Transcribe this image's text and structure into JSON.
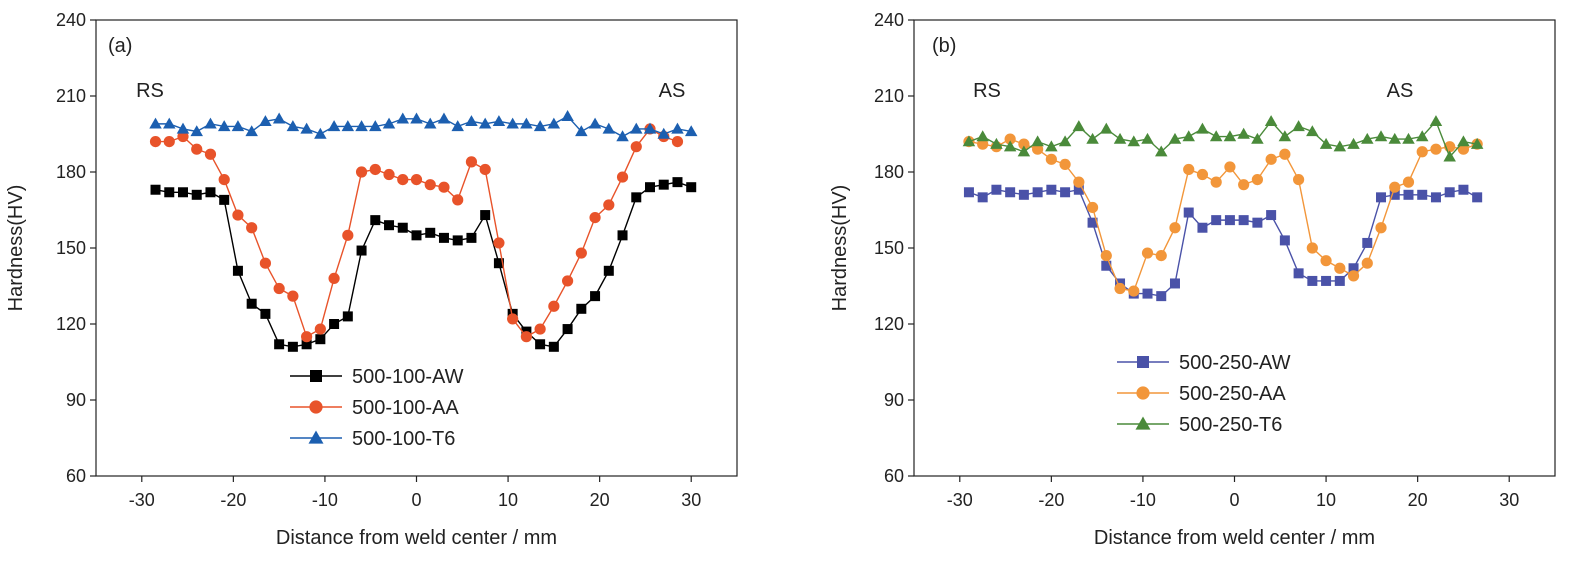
{
  "chart_data": [
    {
      "type": "line",
      "panel_label": "(a)",
      "xlabel": "Distance from weld center / mm",
      "ylabel": "Hardness(HV)",
      "xlim": [
        -35,
        35
      ],
      "ylim": [
        60,
        240
      ],
      "xticks": [
        -30,
        -20,
        -10,
        0,
        10,
        20,
        30
      ],
      "yticks": [
        60,
        90,
        120,
        150,
        180,
        210,
        240
      ],
      "annotations": [
        "RS",
        "AS"
      ],
      "legend_position": "bottom-center",
      "series": [
        {
          "name": "500-100-AW",
          "color": "#000000",
          "marker": "square",
          "x": [
            -28.5,
            -27,
            -25.5,
            -24,
            -22.5,
            -21,
            -19.5,
            -18,
            -16.5,
            -15,
            -13.5,
            -12,
            -10.5,
            -9,
            -7.5,
            -6,
            -4.5,
            -3,
            -1.5,
            0,
            1.5,
            3,
            4.5,
            6,
            7.5,
            9,
            10.5,
            12,
            13.5,
            15,
            16.5,
            18,
            19.5,
            21,
            22.5,
            24,
            25.5,
            27,
            28.5,
            30
          ],
          "y": [
            173,
            172,
            172,
            171,
            172,
            169,
            141,
            128,
            124,
            112,
            111,
            112,
            114,
            120,
            123,
            149,
            161,
            159,
            158,
            155,
            156,
            154,
            153,
            154,
            163,
            144,
            124,
            117,
            112,
            111,
            118,
            126,
            131,
            141,
            155,
            170,
            174,
            175,
            176,
            174
          ]
        },
        {
          "name": "500-100-AA",
          "color": "#e8532a",
          "marker": "circle",
          "x": [
            -28.5,
            -27,
            -25.5,
            -24,
            -22.5,
            -21,
            -19.5,
            -18,
            -16.5,
            -15,
            -13.5,
            -12,
            -10.5,
            -9,
            -7.5,
            -6,
            -4.5,
            -3,
            -1.5,
            0,
            1.5,
            3,
            4.5,
            6,
            7.5,
            9,
            10.5,
            12,
            13.5,
            15,
            16.5,
            18,
            19.5,
            21,
            22.5,
            24,
            25.5,
            27,
            28.5
          ],
          "y": [
            192,
            192,
            194,
            189,
            187,
            177,
            163,
            158,
            144,
            134,
            131,
            115,
            118,
            138,
            155,
            180,
            181,
            179,
            177,
            177,
            175,
            174,
            169,
            184,
            181,
            152,
            122,
            115,
            118,
            127,
            137,
            148,
            162,
            167,
            178,
            190,
            197,
            194,
            192
          ]
        },
        {
          "name": "500-100-T6",
          "color": "#1c5fb0",
          "marker": "triangle",
          "x": [
            -28.5,
            -27,
            -25.5,
            -24,
            -22.5,
            -21,
            -19.5,
            -18,
            -16.5,
            -15,
            -13.5,
            -12,
            -10.5,
            -9,
            -7.5,
            -6,
            -4.5,
            -3,
            -1.5,
            0,
            1.5,
            3,
            4.5,
            6,
            7.5,
            9,
            10.5,
            12,
            13.5,
            15,
            16.5,
            18,
            19.5,
            21,
            22.5,
            24,
            25.5,
            27,
            28.5,
            30
          ],
          "y": [
            199,
            199,
            197,
            196,
            199,
            198,
            198,
            196,
            200,
            201,
            198,
            197,
            195,
            198,
            198,
            198,
            198,
            199,
            201,
            201,
            199,
            201,
            198,
            200,
            199,
            200,
            199,
            199,
            198,
            199,
            202,
            196,
            199,
            197,
            194,
            197,
            197,
            195,
            197,
            196
          ]
        }
      ]
    },
    {
      "type": "line",
      "panel_label": "(b)",
      "xlabel": "Distance from weld center / mm",
      "ylabel": "Hardness(HV)",
      "xlim": [
        -35,
        35
      ],
      "ylim": [
        60,
        240
      ],
      "xticks": [
        -30,
        -20,
        -10,
        0,
        10,
        20,
        30
      ],
      "yticks": [
        60,
        90,
        120,
        150,
        180,
        210,
        240
      ],
      "annotations": [
        "RS",
        "AS"
      ],
      "legend_position": "bottom-left",
      "series": [
        {
          "name": "500-250-AW",
          "color": "#4a52a8",
          "marker": "square",
          "x": [
            -29,
            -27.5,
            -26,
            -24.5,
            -23,
            -21.5,
            -20,
            -18.5,
            -17,
            -15.5,
            -14,
            -12.5,
            -11,
            -9.5,
            -8,
            -6.5,
            -5,
            -3.5,
            -2,
            -0.5,
            1,
            2.5,
            4,
            5.5,
            7,
            8.5,
            10,
            11.5,
            13,
            14.5,
            16,
            17.5,
            19,
            20.5,
            22,
            23.5,
            25,
            26.5
          ],
          "y": [
            172,
            170,
            173,
            172,
            171,
            172,
            173,
            172,
            173,
            160,
            143,
            136,
            132,
            132,
            131,
            136,
            164,
            158,
            161,
            161,
            161,
            160,
            163,
            153,
            140,
            137,
            137,
            137,
            142,
            152,
            170,
            171,
            171,
            171,
            170,
            172,
            173,
            170
          ]
        },
        {
          "name": "500-250-AA",
          "color": "#f2963a",
          "marker": "circle",
          "x": [
            -29,
            -27.5,
            -26,
            -24.5,
            -23,
            -21.5,
            -20,
            -18.5,
            -17,
            -15.5,
            -14,
            -12.5,
            -11,
            -9.5,
            -8,
            -6.5,
            -5,
            -3.5,
            -2,
            -0.5,
            1,
            2.5,
            4,
            5.5,
            7,
            8.5,
            10,
            11.5,
            13,
            14.5,
            16,
            17.5,
            19,
            20.5,
            22,
            23.5,
            25,
            26.5
          ],
          "y": [
            192,
            191,
            190,
            193,
            191,
            189,
            185,
            183,
            176,
            166,
            147,
            134,
            133,
            148,
            147,
            158,
            181,
            179,
            176,
            182,
            175,
            177,
            185,
            187,
            177,
            150,
            145,
            142,
            139,
            144,
            158,
            174,
            176,
            188,
            189,
            190,
            189,
            191
          ]
        },
        {
          "name": "500-250-T6",
          "color": "#4a8a3a",
          "marker": "triangle",
          "x": [
            -29,
            -27.5,
            -26,
            -24.5,
            -23,
            -21.5,
            -20,
            -18.5,
            -17,
            -15.5,
            -14,
            -12.5,
            -11,
            -9.5,
            -8,
            -6.5,
            -5,
            -3.5,
            -2,
            -0.5,
            1,
            2.5,
            4,
            5.5,
            7,
            8.5,
            10,
            11.5,
            13,
            14.5,
            16,
            17.5,
            19,
            20.5,
            22,
            23.5,
            25,
            26.5
          ],
          "y": [
            192,
            194,
            191,
            190,
            188,
            192,
            190,
            192,
            198,
            193,
            197,
            193,
            192,
            193,
            188,
            193,
            194,
            197,
            194,
            194,
            195,
            193,
            200,
            194,
            198,
            196,
            191,
            190,
            191,
            193,
            194,
            193,
            193,
            194,
            200,
            186,
            192,
            191
          ]
        }
      ]
    }
  ]
}
